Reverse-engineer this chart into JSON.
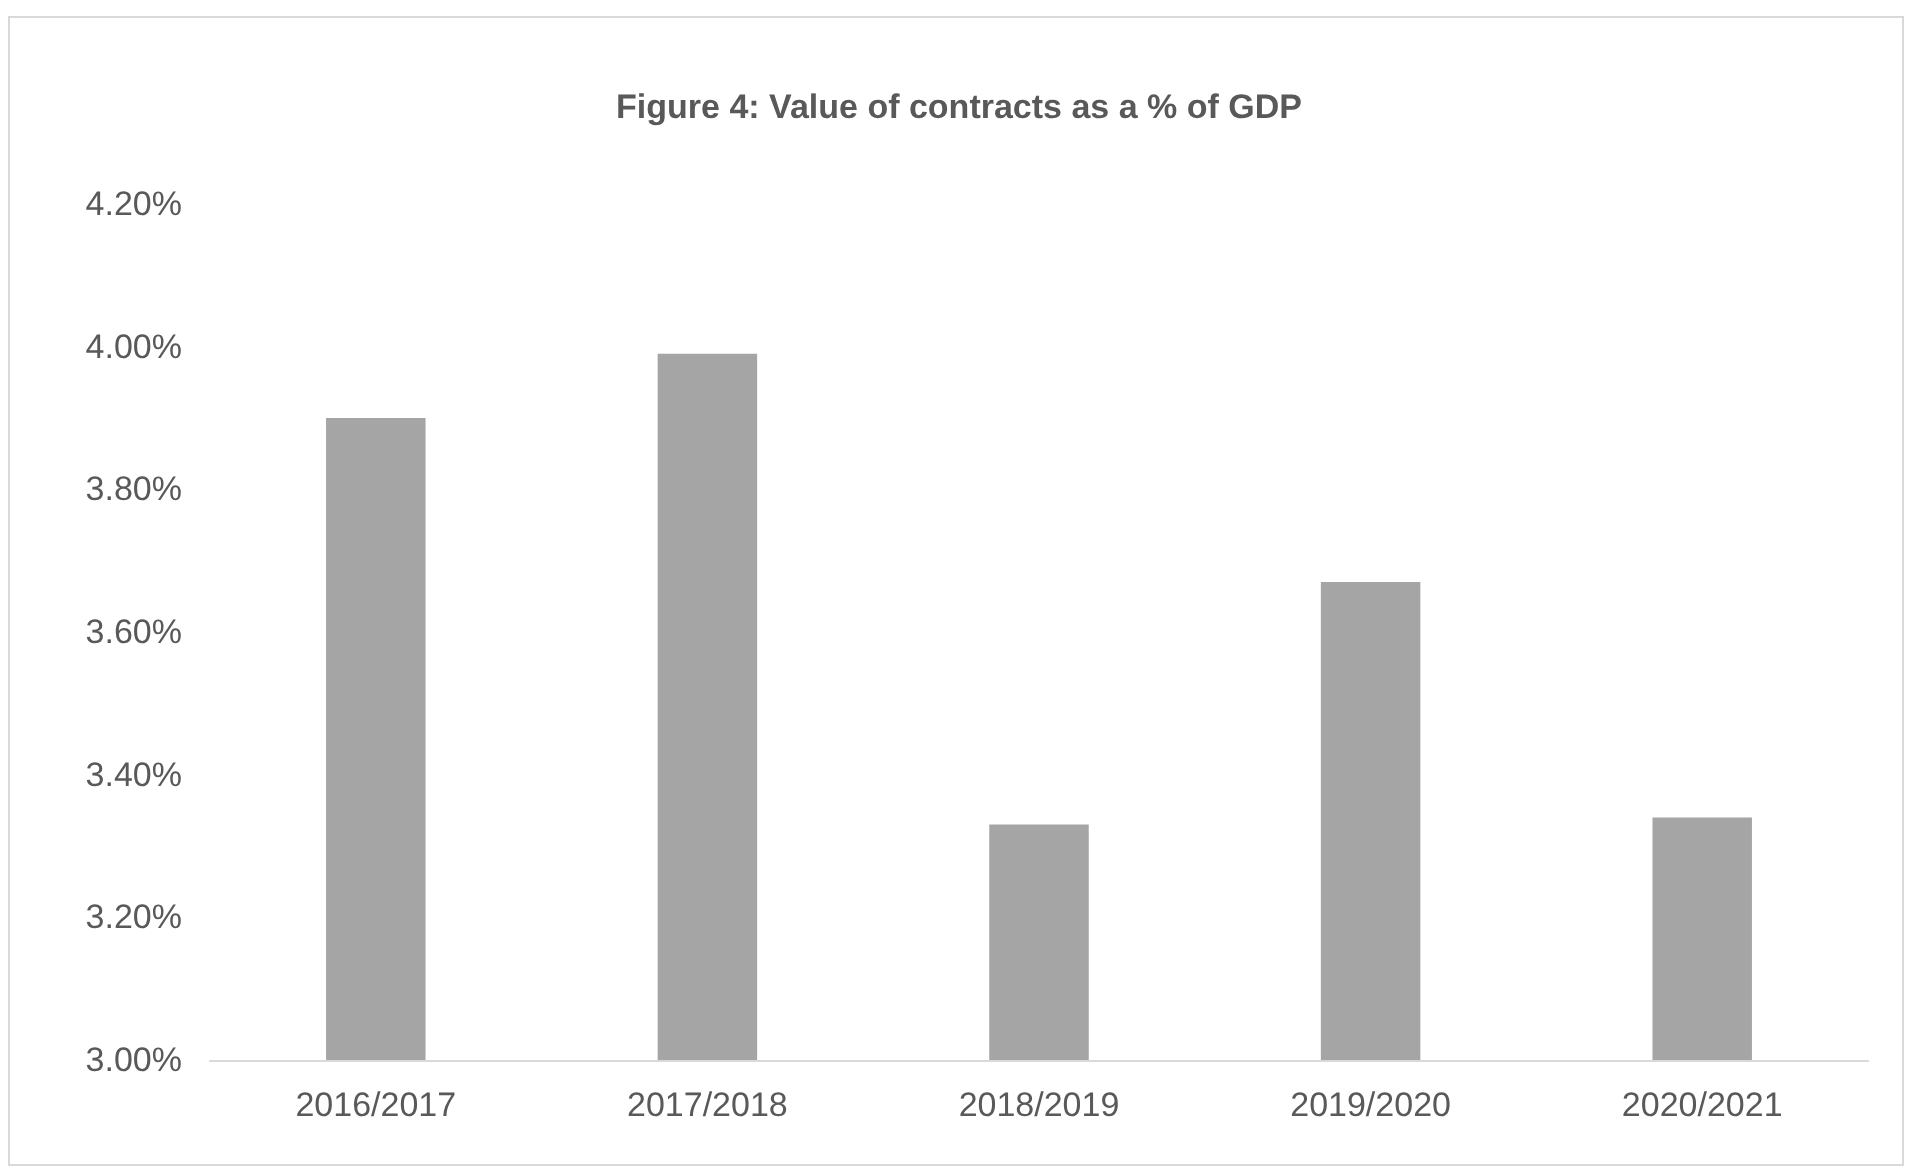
{
  "chart_data": {
    "type": "bar",
    "title": "Figure 4: Value of contracts as a % of GDP",
    "categories": [
      "2016/2017",
      "2017/2018",
      "2018/2019",
      "2019/2020",
      "2020/2021"
    ],
    "values": [
      3.9,
      3.99,
      3.33,
      3.67,
      3.34
    ],
    "color": "#a5a5a5",
    "ylim": [
      3.0,
      4.2
    ],
    "yticks": [
      {
        "value": 3.0,
        "label": "3.00%"
      },
      {
        "value": 3.2,
        "label": "3.20%"
      },
      {
        "value": 3.4,
        "label": "3.40%"
      },
      {
        "value": 3.6,
        "label": "3.60%"
      },
      {
        "value": 3.8,
        "label": "3.80%"
      },
      {
        "value": 4.0,
        "label": "4.00%"
      },
      {
        "value": 4.2,
        "label": "4.20%"
      }
    ],
    "grid": false
  }
}
